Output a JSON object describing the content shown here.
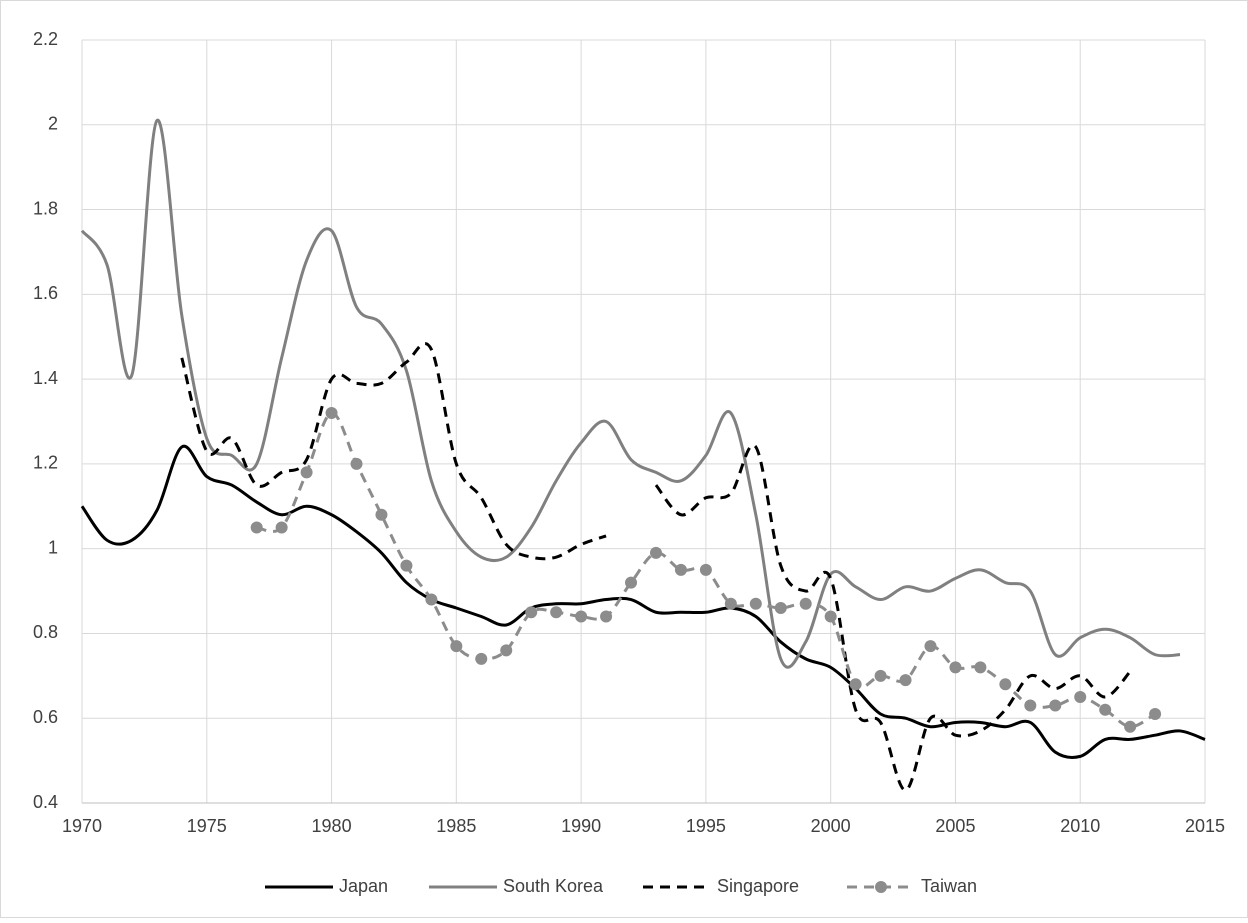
{
  "chart_data": {
    "type": "line",
    "x": [
      1970,
      1971,
      1972,
      1973,
      1974,
      1975,
      1976,
      1977,
      1978,
      1979,
      1980,
      1981,
      1982,
      1983,
      1984,
      1985,
      1986,
      1987,
      1988,
      1989,
      1990,
      1991,
      1992,
      1993,
      1994,
      1995,
      1996,
      1997,
      1998,
      1999,
      2000,
      2001,
      2002,
      2003,
      2004,
      2005,
      2006,
      2007,
      2008,
      2009,
      2010,
      2011,
      2012,
      2013,
      2014,
      2015
    ],
    "series": [
      {
        "name": "Japan",
        "color": "#000000",
        "dashed": false,
        "marker": false,
        "values": [
          1.1,
          1.02,
          1.02,
          1.09,
          1.24,
          1.17,
          1.15,
          1.11,
          1.08,
          1.1,
          1.08,
          1.04,
          0.99,
          0.92,
          0.88,
          0.86,
          0.84,
          0.82,
          0.86,
          0.87,
          0.87,
          0.88,
          0.88,
          0.85,
          0.85,
          0.85,
          0.86,
          0.84,
          0.78,
          0.74,
          0.72,
          0.67,
          0.61,
          0.6,
          0.58,
          0.59,
          0.59,
          0.58,
          0.59,
          0.52,
          0.51,
          0.55,
          0.55,
          0.56,
          0.57,
          0.55
        ]
      },
      {
        "name": "South Korea",
        "color": "#808080",
        "dashed": false,
        "marker": false,
        "values": [
          1.75,
          1.67,
          1.41,
          2.01,
          1.55,
          1.26,
          1.22,
          1.2,
          1.45,
          1.68,
          1.75,
          1.57,
          1.53,
          1.42,
          1.16,
          1.04,
          0.98,
          0.98,
          1.05,
          1.16,
          1.25,
          1.3,
          1.21,
          1.18,
          1.16,
          1.22,
          1.32,
          1.08,
          0.74,
          0.78,
          0.94,
          0.91,
          0.88,
          0.91,
          0.9,
          0.93,
          0.95,
          0.92,
          0.9,
          0.75,
          0.79,
          0.81,
          0.79,
          0.75,
          0.75,
          null
        ]
      },
      {
        "name": "Singapore",
        "color": "#000000",
        "dashed": true,
        "marker": false,
        "values": [
          null,
          null,
          null,
          null,
          1.45,
          1.23,
          1.26,
          1.15,
          1.18,
          1.21,
          1.4,
          1.39,
          1.39,
          1.44,
          1.47,
          1.2,
          1.12,
          1.01,
          0.98,
          0.98,
          1.01,
          1.03,
          null,
          1.15,
          1.08,
          1.12,
          1.13,
          1.24,
          0.96,
          0.9,
          0.93,
          0.62,
          0.59,
          0.43,
          0.6,
          0.56,
          0.57,
          0.62,
          0.7,
          0.67,
          0.7,
          0.65,
          0.71,
          null,
          null,
          null
        ]
      },
      {
        "name": "Taiwan",
        "color": "#8c8c8c",
        "dashed": true,
        "marker": true,
        "values": [
          null,
          null,
          null,
          null,
          null,
          null,
          null,
          1.05,
          1.05,
          1.18,
          1.32,
          1.2,
          1.08,
          0.96,
          0.88,
          0.77,
          0.74,
          0.76,
          0.85,
          0.85,
          0.84,
          0.84,
          0.92,
          0.99,
          0.95,
          0.95,
          0.87,
          0.87,
          0.86,
          0.87,
          0.84,
          0.68,
          0.7,
          0.69,
          0.77,
          0.72,
          0.72,
          0.68,
          0.63,
          0.63,
          0.65,
          0.62,
          0.58,
          0.61,
          null,
          null
        ]
      }
    ],
    "xlim": [
      1970,
      2015
    ],
    "xticks": [
      1970,
      1975,
      1980,
      1985,
      1990,
      1995,
      2000,
      2005,
      2010,
      2015
    ],
    "ylim": [
      0.4,
      2.2
    ],
    "yticks": [
      0.4,
      0.6,
      0.8,
      1,
      1.2,
      1.4,
      1.6,
      1.8,
      2,
      2.2
    ],
    "grid": true,
    "legend": "bottom"
  }
}
